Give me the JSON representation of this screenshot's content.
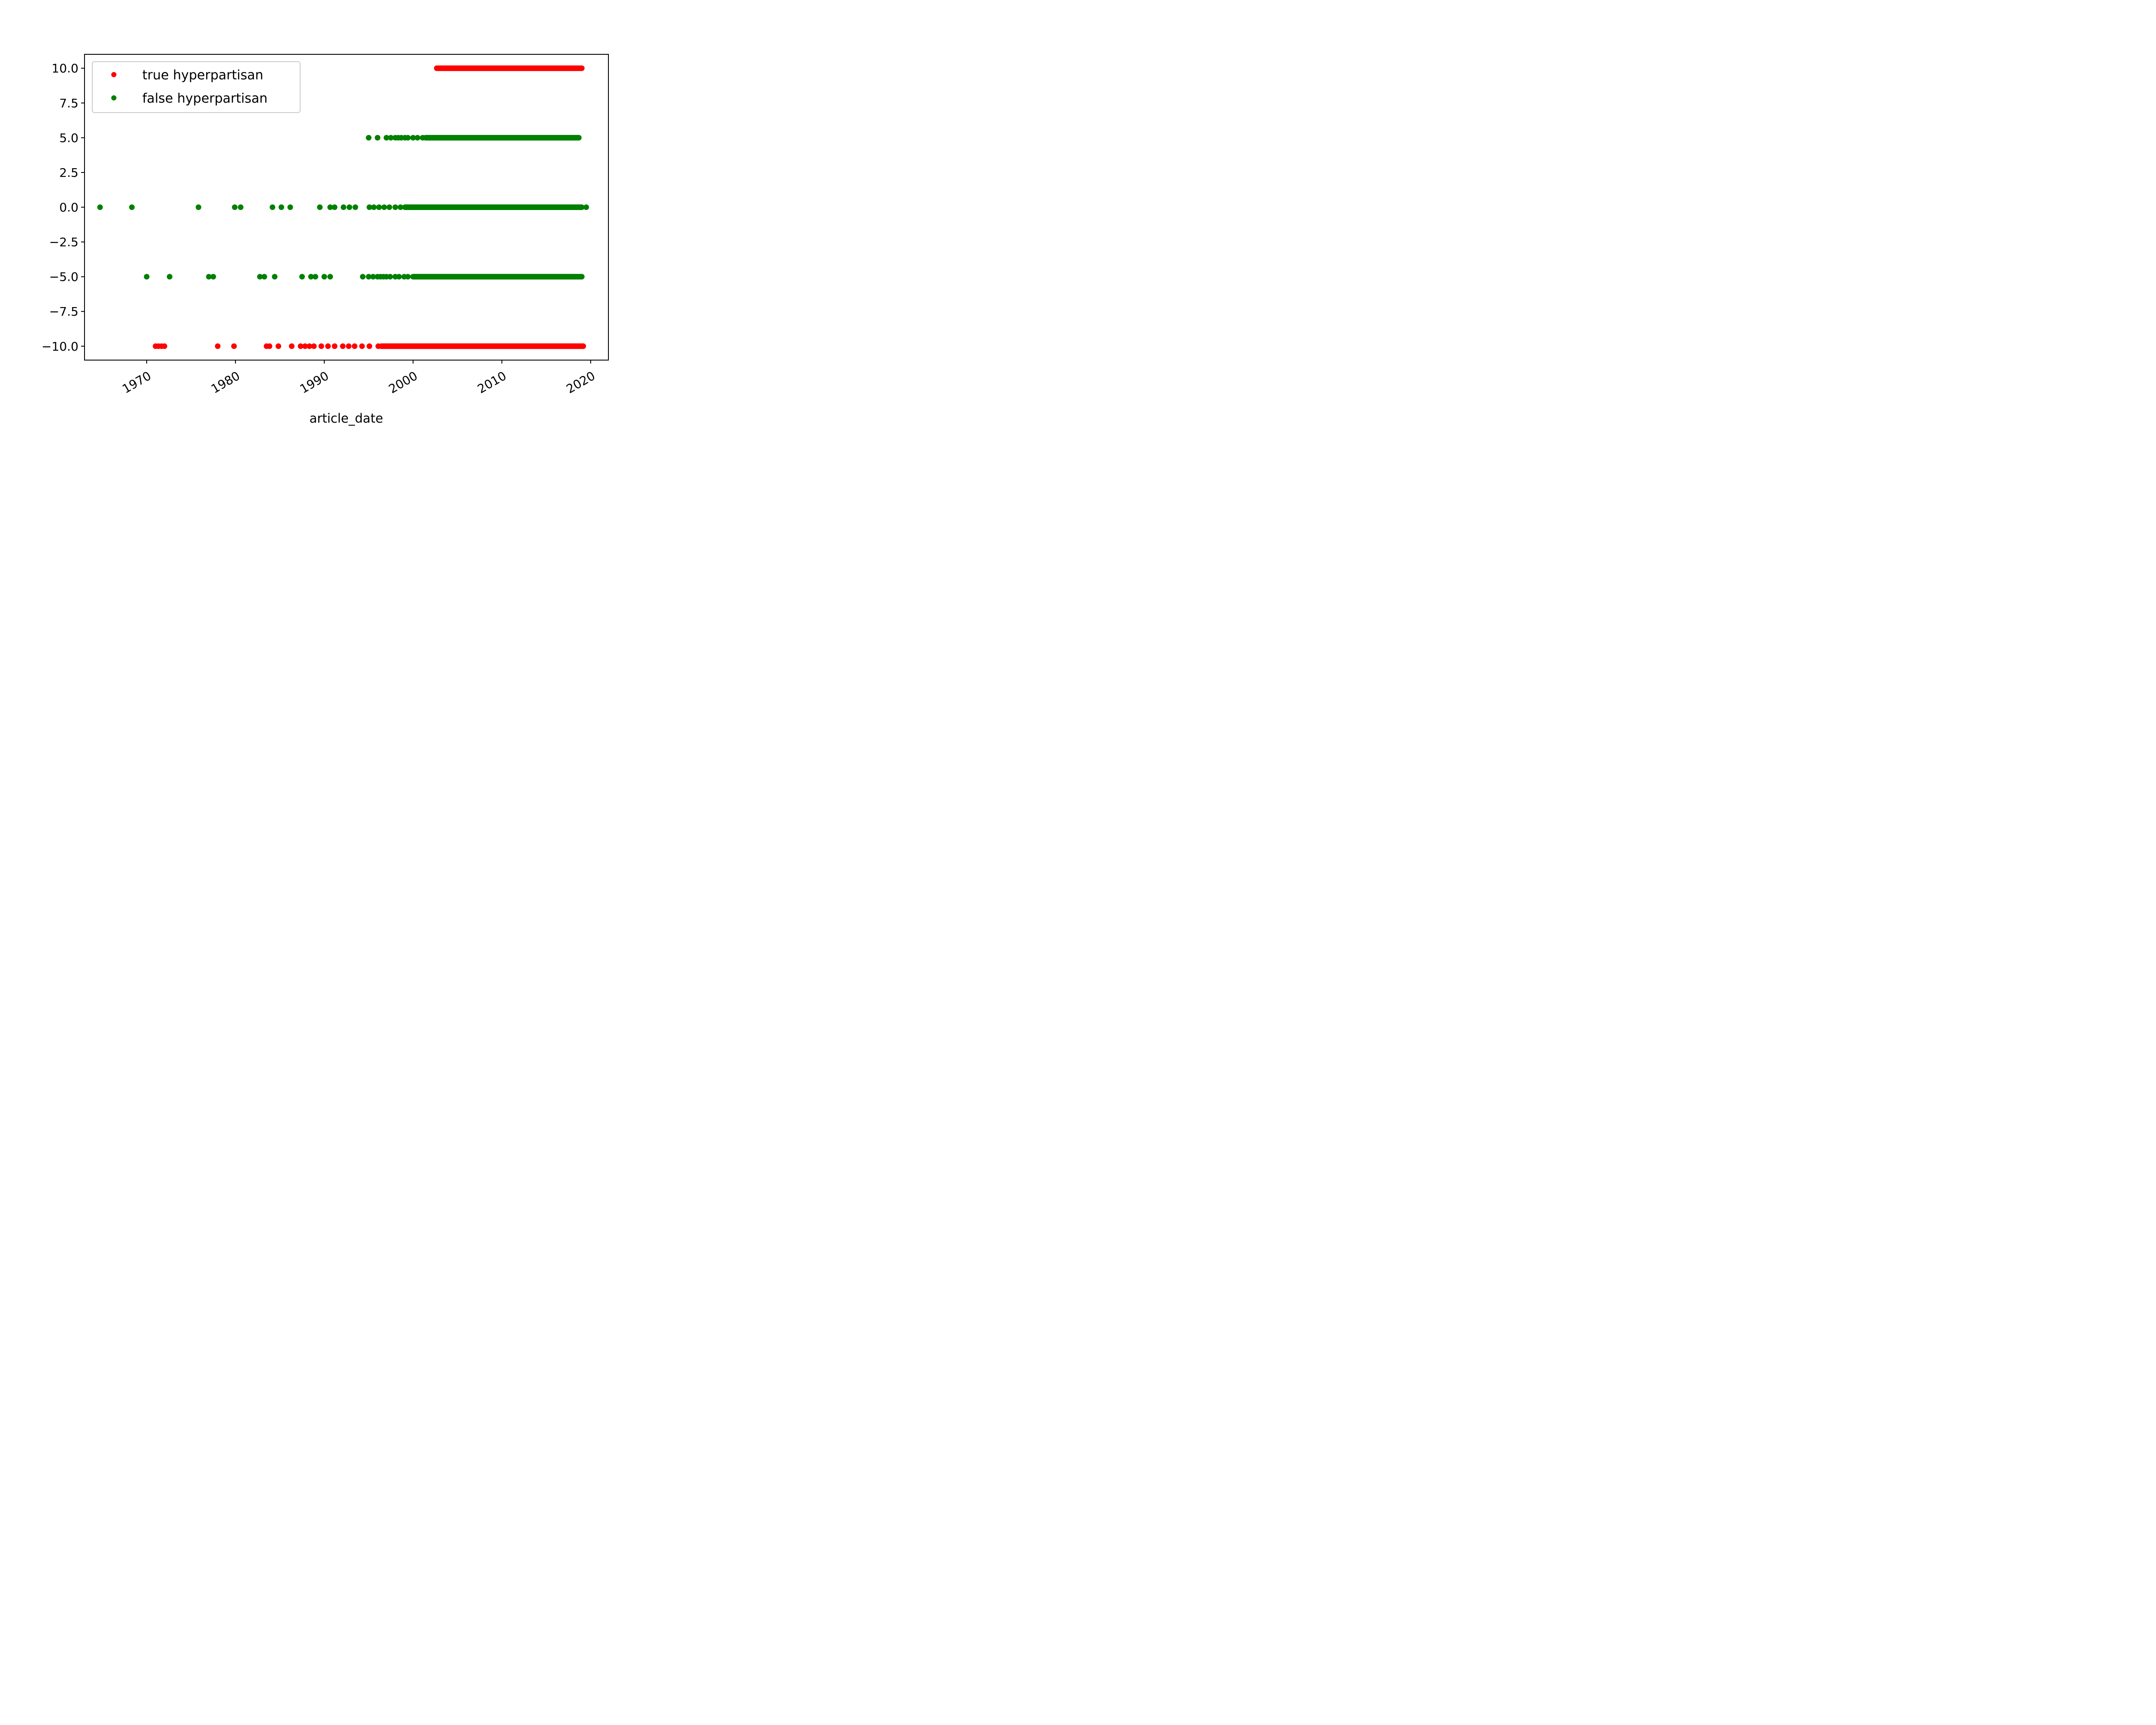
{
  "chart_data": {
    "type": "scatter",
    "xlabel": "article_date",
    "ylabel": "",
    "xlim": [
      "1963-01-01",
      "2022-01-01"
    ],
    "ylim": [
      -11.0,
      11.0
    ],
    "x_ticks": [
      "1970",
      "1980",
      "1990",
      "2000",
      "2010",
      "2020"
    ],
    "y_ticks": [
      "10.0",
      "7.5",
      "5.0",
      "2.5",
      "0.0",
      "−2.5",
      "−5.0",
      "−7.5",
      "−10.0"
    ],
    "grid": false,
    "legend": "top-left",
    "series": [
      {
        "name": "true hyperpartisan",
        "color": "#ff0000",
        "clusters": [
          {
            "y": 10.0,
            "points": [],
            "range": [
              "2002-09-01",
              "2019-01-01"
            ]
          },
          {
            "y": -10.0,
            "points": [
              "1971-01-01",
              "1971-05-01",
              "1971-09-01",
              "1972-01-01",
              "1978-01-01",
              "1979-11-01",
              "1983-07-01",
              "1983-11-01",
              "1984-11-01",
              "1986-05-01",
              "1987-05-01",
              "1987-11-01",
              "1988-05-01",
              "1988-11-01",
              "1989-09-01",
              "1990-06-01",
              "1991-03-01",
              "1992-02-01",
              "1992-10-01",
              "1993-06-01",
              "1994-04-01",
              "1995-02-01",
              "1996-02-01"
            ],
            "range": [
              "1996-06-01",
              "2019-03-01"
            ]
          }
        ]
      },
      {
        "name": "false hyperpartisan",
        "color": "#008000",
        "clusters": [
          {
            "y": 5.0,
            "points": [
              "1995-01-01",
              "1996-01-01",
              "1997-01-01",
              "1997-07-01",
              "1998-01-01",
              "1998-05-01",
              "1998-09-01",
              "1999-02-01",
              "1999-06-01",
              "2000-01-01",
              "2000-07-01",
              "2001-02-01"
            ],
            "range": [
              "2001-06-01",
              "2018-09-01"
            ]
          },
          {
            "y": 0.0,
            "points": [
              "1964-10-01",
              "1968-05-01",
              "1975-11-01",
              "1979-12-01",
              "1980-08-01",
              "1984-03-01",
              "1985-03-01",
              "1986-03-01",
              "1989-07-01",
              "1990-09-01",
              "1991-03-01",
              "1992-03-01",
              "1992-11-01",
              "1993-07-01",
              "1995-02-01",
              "1995-08-01",
              "1996-03-01",
              "1996-10-01",
              "1997-05-01",
              "1998-01-01",
              "1998-08-01"
            ],
            "range": [
              "1999-02-01",
              "2019-01-01"
            ],
            "extra_points": [
              "2019-07-01"
            ]
          },
          {
            "y": -5.0,
            "points": [
              "1970-01-01",
              "1972-08-01",
              "1977-01-01",
              "1977-07-01",
              "1982-10-01",
              "1983-04-01",
              "1984-06-01",
              "1987-07-01",
              "1988-07-01",
              "1989-01-01",
              "1990-01-01",
              "1990-09-01",
              "1994-05-01",
              "1995-01-01",
              "1995-07-01",
              "1996-01-01",
              "1996-05-01",
              "1996-09-01",
              "1997-01-01",
              "1997-06-01",
              "1998-01-01",
              "1998-06-01",
              "1999-01-01",
              "1999-06-01"
            ],
            "range": [
              "2000-01-01",
              "2019-01-01"
            ]
          }
        ]
      }
    ]
  }
}
